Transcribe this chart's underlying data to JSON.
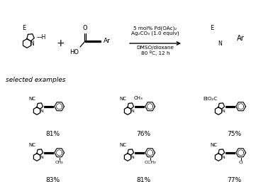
{
  "reaction_conditions": [
    "5 mol% Pd(OAc)₂",
    "Ag₂CO₃ (1.0 equiv)",
    "DMSO/dioxane",
    "80 ºC, 12 h"
  ],
  "selected_examples_label": "selected examples",
  "yields": [
    "81%",
    "76%",
    "75%",
    "83%",
    "81%",
    "77%"
  ],
  "bg_color": "#ffffff"
}
